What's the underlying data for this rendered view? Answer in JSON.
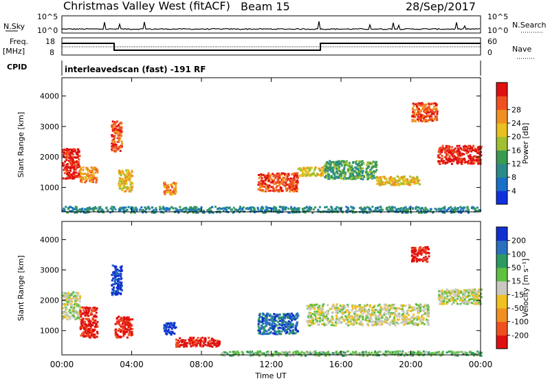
{
  "header": {
    "title": "Christmas Valley West (fitACF)",
    "beam": "Beam 15",
    "date": "28/Sep/2017"
  },
  "sky_panel": {
    "left_label": "N.Sky",
    "right_label": "N.Search",
    "left_ticks": [
      "10^5",
      "10^0"
    ],
    "right_ticks": [
      "10^5",
      "10^0"
    ]
  },
  "freq_panel": {
    "left_label_1": "Freq.",
    "left_label_2": "[MHz]",
    "right_label": "Nave",
    "left_ticks": [
      "18",
      "8"
    ],
    "right_ticks": [
      "60",
      "0"
    ]
  },
  "cpid": {
    "label": "CPID",
    "text": "interleavedscan (fast) -191 RF"
  },
  "chart_data": [
    {
      "type": "heatmap",
      "title": "",
      "ylabel": "Slant Range [km]",
      "xlabel": "",
      "x_ticks": [
        "00:00",
        "04:00",
        "08:00",
        "12:00",
        "16:00",
        "20:00",
        "00:00"
      ],
      "y_ticks": [
        1000,
        2000,
        3000,
        4000
      ],
      "ylim": [
        200,
        4600
      ],
      "xlim_hours": [
        0,
        24
      ],
      "colorbar": {
        "label": "Power [dB]",
        "ticks": [
          "4",
          "8",
          "12",
          "16",
          "20",
          "24",
          "28"
        ],
        "colors": [
          "#1030e0",
          "#1870c8",
          "#2a8a8a",
          "#3a9a50",
          "#a0c030",
          "#e8c020",
          "#f09020",
          "#f05020",
          "#e01010"
        ]
      },
      "scatter_regions": [
        {
          "t": [
            0.0,
            1.0
          ],
          "r": [
            1300,
            2300
          ],
          "level": 8
        },
        {
          "t": [
            1.0,
            2.0
          ],
          "r": [
            1200,
            1700
          ],
          "level": 6
        },
        {
          "t": [
            2.8,
            3.4
          ],
          "r": [
            2200,
            3200
          ],
          "level": 7
        },
        {
          "t": [
            3.2,
            4.0
          ],
          "r": [
            900,
            1600
          ],
          "level": 5
        },
        {
          "t": [
            5.8,
            6.5
          ],
          "r": [
            800,
            1200
          ],
          "level": 6
        },
        {
          "t": [
            11.2,
            13.5
          ],
          "r": [
            900,
            1500
          ],
          "level": 7
        },
        {
          "t": [
            13.5,
            15.0
          ],
          "r": [
            1400,
            1700
          ],
          "level": 5
        },
        {
          "t": [
            15.0,
            18.0
          ],
          "r": [
            1300,
            1900
          ],
          "level": 3
        },
        {
          "t": [
            18.0,
            20.5
          ],
          "r": [
            1100,
            1400
          ],
          "level": 5
        },
        {
          "t": [
            20.0,
            21.5
          ],
          "r": [
            3200,
            3800
          ],
          "level": 7
        },
        {
          "t": [
            21.5,
            24.0
          ],
          "r": [
            1800,
            2400
          ],
          "level": 8
        },
        {
          "t": [
            0.0,
            24.0
          ],
          "r": [
            200,
            400
          ],
          "level": 2
        }
      ]
    },
    {
      "type": "heatmap",
      "title": "",
      "ylabel": "Slant Range [km]",
      "xlabel": "Time UT",
      "x_ticks": [
        "00:00",
        "04:00",
        "08:00",
        "12:00",
        "16:00",
        "20:00",
        "00:00"
      ],
      "y_ticks": [
        1000,
        2000,
        3000,
        4000
      ],
      "ylim": [
        200,
        4600
      ],
      "xlim_hours": [
        0,
        24
      ],
      "colorbar": {
        "label": "Velocity [m s^-1]",
        "ticks": [
          "200",
          "100",
          "50",
          "15",
          "-15",
          "-50",
          "-100",
          "-200"
        ],
        "colors": [
          "#1030d0",
          "#2a70c0",
          "#2a9a60",
          "#60c040",
          "#c8c8c0",
          "#f0c020",
          "#f09020",
          "#f05020",
          "#e01010"
        ]
      },
      "scatter_regions": [
        {
          "t": [
            0.0,
            1.0
          ],
          "r": [
            1400,
            2300
          ],
          "level": 4
        },
        {
          "t": [
            1.0,
            2.0
          ],
          "r": [
            800,
            1800
          ],
          "level": 8
        },
        {
          "t": [
            2.8,
            3.4
          ],
          "r": [
            2200,
            3200
          ],
          "level": 0
        },
        {
          "t": [
            3.0,
            4.0
          ],
          "r": [
            800,
            1500
          ],
          "level": 8
        },
        {
          "t": [
            5.8,
            6.5
          ],
          "r": [
            900,
            1300
          ],
          "level": 0
        },
        {
          "t": [
            6.5,
            9.0
          ],
          "r": [
            500,
            800
          ],
          "level": 8
        },
        {
          "t": [
            11.2,
            13.5
          ],
          "r": [
            900,
            1600
          ],
          "level": 1
        },
        {
          "t": [
            14.0,
            21.0
          ],
          "r": [
            1200,
            1900
          ],
          "level": 4
        },
        {
          "t": [
            20.0,
            21.0
          ],
          "r": [
            3300,
            3800
          ],
          "level": 8
        },
        {
          "t": [
            21.5,
            24.0
          ],
          "r": [
            1900,
            2400
          ],
          "level": 4
        },
        {
          "t": [
            9.0,
            24.0
          ],
          "r": [
            200,
            350
          ],
          "level": 3
        }
      ]
    }
  ]
}
